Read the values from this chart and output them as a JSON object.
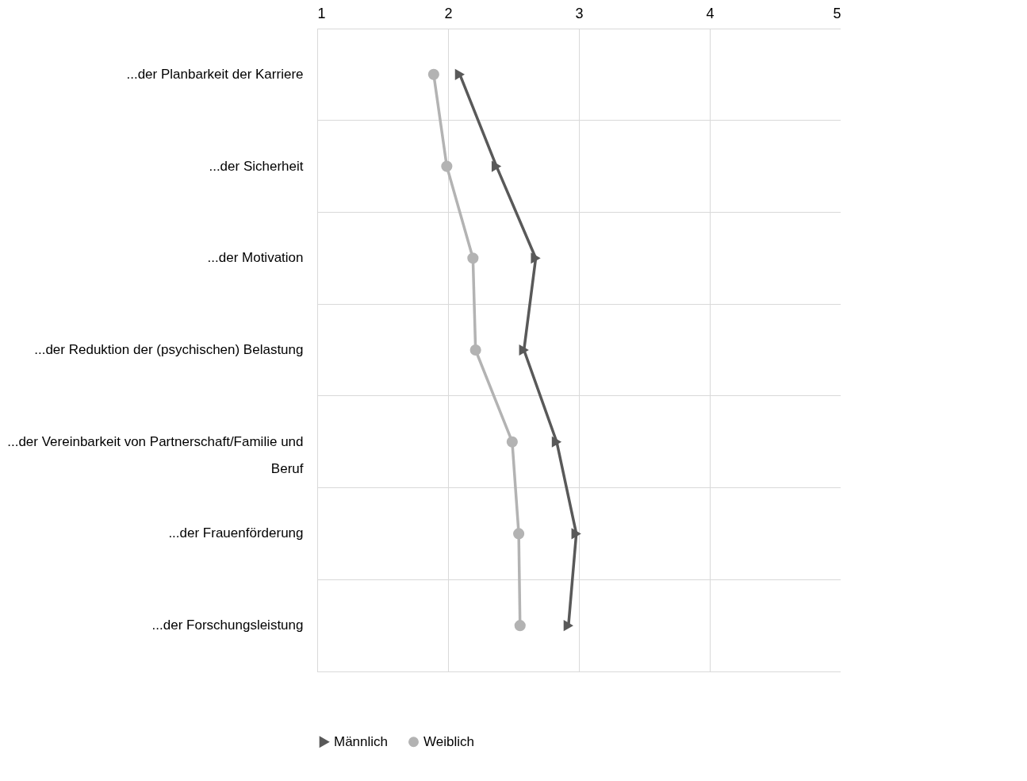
{
  "chart_data": {
    "type": "line",
    "orientation": "horizontal",
    "categories": [
      "...der Planbarkeit der Karriere",
      "...der Sicherheit",
      "...der Motivation",
      "...der Reduktion der (psychischen) Belastung",
      "...der Vereinbarkeit von Partnerschaft/Familie und Beruf",
      "...der Frauenförderung",
      "...der Forschungsleistung"
    ],
    "series": [
      {
        "name": "Männlich",
        "color": "#595959",
        "marker": "triangle",
        "values": [
          2.09,
          2.37,
          2.67,
          2.58,
          2.83,
          2.98,
          2.92
        ]
      },
      {
        "name": "Weiblich",
        "color": "#b3b3b3",
        "marker": "circle",
        "values": [
          1.89,
          1.99,
          2.19,
          2.21,
          2.49,
          2.54,
          2.55
        ]
      }
    ],
    "xlim": [
      1,
      5
    ],
    "xticks": [
      1,
      2,
      3,
      4,
      5
    ],
    "grid": true,
    "legend": "bottom",
    "line_style": "solid"
  }
}
